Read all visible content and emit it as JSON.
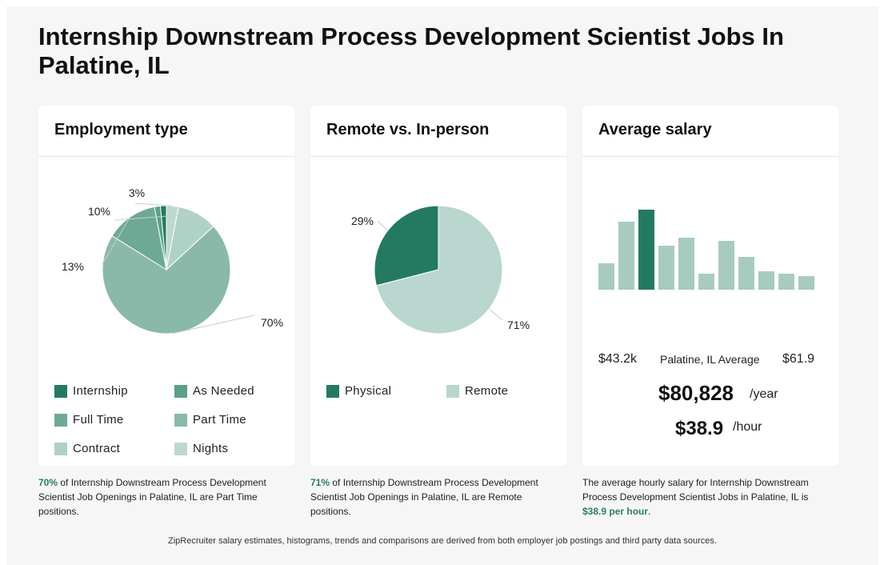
{
  "page": {
    "title": "Internship Downstream Process Development Scientist Jobs In Palatine, IL",
    "footer": "ZipRecruiter salary estimates, histograms, trends and comparisons are derived from both employer job postings and third party data sources."
  },
  "employment": {
    "title": "Employment type",
    "caption_highlight": "70%",
    "caption_text": " of Internship Downstream Process Development Scientist Job Openings in Palatine, IL are Part Time positions."
  },
  "remote": {
    "title": "Remote vs. In-person",
    "caption_highlight": "71%",
    "caption_text": " of Internship Downstream Process Development Scientist Job Openings in Palatine, IL are Remote positions."
  },
  "salary": {
    "title": "Average salary",
    "min_label": "$43.2k",
    "center_label": "Palatine, IL Average",
    "max_label": "$61.9",
    "yearly_value": "$80,828",
    "yearly_unit": "/year",
    "hourly_value": "$38.9",
    "hourly_unit": "/hour",
    "caption_text": "The average hourly salary for Internship Downstream Process Development Scientist Jobs in Palatine, IL is ",
    "caption_highlight": "$38.9 per hour",
    "caption_end": "."
  },
  "chart_data": [
    {
      "type": "pie",
      "title": "Employment type",
      "labels": [
        "Internship",
        "As Needed",
        "Full Time",
        "Part Time",
        "Contract",
        "Nights"
      ],
      "values": [
        1.5,
        1.5,
        13,
        70,
        10,
        3
      ],
      "colors": [
        "#247a61",
        "#5aa08a",
        "#6ea995",
        "#8ab9a9",
        "#b0d1c6",
        "#bcd9cf"
      ],
      "data_labels": [
        {
          "text": "70%"
        },
        {
          "text": "13%"
        },
        {
          "text": "10%"
        },
        {
          "text": "3%"
        }
      ]
    },
    {
      "type": "pie",
      "title": "Remote vs. In-person",
      "labels": [
        "Physical",
        "Remote"
      ],
      "values": [
        29,
        71
      ],
      "colors": [
        "#247a61",
        "#b9d7ce"
      ],
      "data_labels": [
        {
          "text": "29%"
        },
        {
          "text": "71%"
        }
      ]
    },
    {
      "type": "bar",
      "title": "Average salary",
      "values": [
        33,
        85,
        100,
        55,
        65,
        20,
        61,
        41,
        23,
        20,
        17
      ],
      "highlight_index": 2,
      "color": "#a7ccbf",
      "highlight_color": "#247a61"
    }
  ]
}
